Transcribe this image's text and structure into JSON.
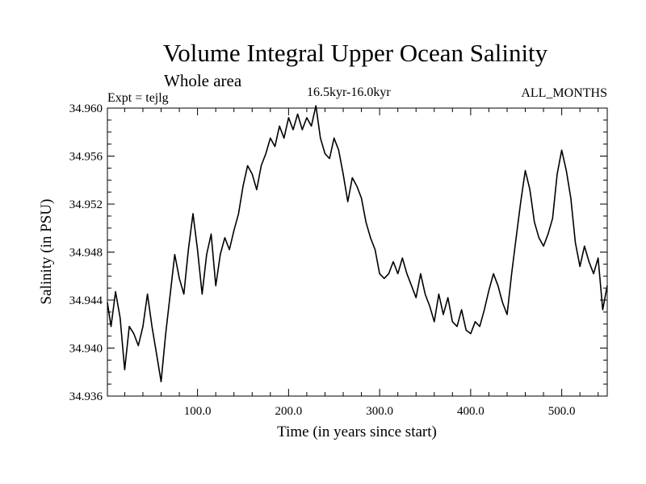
{
  "header": {
    "title": "Volume Integral Upper Ocean Salinity",
    "subtitle": "Whole area",
    "experiment": "Expt = tejlg",
    "period": "16.5kyr-16.0kyr",
    "months": "ALL_MONTHS"
  },
  "chart_data": {
    "type": "line",
    "title": "Volume Integral Upper Ocean Salinity",
    "xlabel": "Time (in years since start)",
    "ylabel": "Salinity (in PSU)",
    "xlim": [
      1,
      550
    ],
    "ylim": [
      34.936,
      34.96
    ],
    "xticks": [
      100,
      200,
      300,
      400,
      500
    ],
    "xtick_labels": [
      "100.0",
      "200.0",
      "300.0",
      "400.0",
      "500.0"
    ],
    "yticks": [
      34.936,
      34.94,
      34.944,
      34.948,
      34.952,
      34.956,
      34.96
    ],
    "ytick_labels": [
      "34.936",
      "34.940",
      "34.944",
      "34.948",
      "34.952",
      "34.956",
      "34.960"
    ],
    "line_color": "#000000",
    "series": [
      {
        "name": "salinity",
        "x": [
          1,
          5,
          10,
          15,
          20,
          25,
          30,
          35,
          40,
          45,
          50,
          55,
          60,
          65,
          70,
          75,
          80,
          85,
          90,
          95,
          100,
          105,
          110,
          115,
          120,
          125,
          130,
          135,
          140,
          145,
          150,
          155,
          160,
          165,
          170,
          175,
          180,
          185,
          190,
          195,
          200,
          205,
          210,
          215,
          220,
          225,
          230,
          235,
          240,
          245,
          250,
          255,
          260,
          265,
          270,
          275,
          280,
          285,
          290,
          295,
          300,
          305,
          310,
          315,
          320,
          325,
          330,
          335,
          340,
          345,
          350,
          355,
          360,
          365,
          370,
          375,
          380,
          385,
          390,
          395,
          400,
          405,
          410,
          415,
          420,
          425,
          430,
          435,
          440,
          445,
          450,
          455,
          460,
          465,
          470,
          475,
          480,
          485,
          490,
          495,
          500,
          505,
          510,
          515,
          520,
          525,
          530,
          535,
          540,
          545,
          550
        ],
        "values": [
          34.9438,
          34.9418,
          34.9447,
          34.9425,
          34.9382,
          34.9418,
          34.9412,
          34.9402,
          34.9418,
          34.9445,
          34.9418,
          34.9395,
          34.9372,
          34.9412,
          34.9445,
          34.9478,
          34.9458,
          34.9445,
          34.9482,
          34.9512,
          34.9482,
          34.9445,
          34.9478,
          34.9495,
          34.9452,
          34.9478,
          34.9492,
          34.9482,
          34.9498,
          34.9512,
          34.9535,
          34.9552,
          34.9545,
          34.9532,
          34.9552,
          34.9562,
          34.9575,
          34.9568,
          34.9585,
          34.9575,
          34.9592,
          34.9582,
          34.9595,
          34.9582,
          34.9592,
          34.9585,
          34.9602,
          34.9575,
          34.9562,
          34.9558,
          34.9575,
          34.9565,
          34.9545,
          34.9522,
          34.9542,
          34.9535,
          34.9525,
          34.9505,
          34.9492,
          34.9482,
          34.9462,
          34.9458,
          34.9462,
          34.9472,
          34.9462,
          34.9475,
          34.9462,
          34.9452,
          34.9442,
          34.9462,
          34.9445,
          34.9435,
          34.9422,
          34.9445,
          34.9428,
          34.9442,
          34.9422,
          34.9418,
          34.9432,
          34.9415,
          34.9412,
          34.9422,
          34.9418,
          34.9432,
          34.9448,
          34.9462,
          34.9452,
          34.9438,
          34.9428,
          34.9462,
          34.9492,
          34.9522,
          34.9548,
          34.9532,
          34.9505,
          34.9492,
          34.9485,
          34.9495,
          34.9508,
          34.9545,
          34.9565,
          34.9548,
          34.9525,
          34.9488,
          34.9468,
          34.9485,
          34.9472,
          34.9462,
          34.9475,
          34.9432,
          34.9452
        ]
      }
    ]
  }
}
